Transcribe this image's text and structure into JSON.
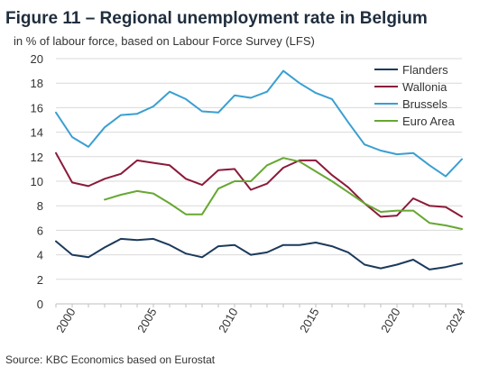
{
  "header": {
    "title": "Figure 11 – Regional unemployment rate in Belgium",
    "subtitle": "in % of labour force, based on Labour Force Survey (LFS)"
  },
  "footer": {
    "source": "Source: KBC Economics based on Eurostat"
  },
  "chart_data": {
    "type": "line",
    "title": "Figure 11 – Regional unemployment rate in Belgium",
    "subtitle": "in % of labour force, based on Labour Force Survey (LFS)",
    "xlabel": "",
    "ylabel": "",
    "xlim": [
      1999,
      2024
    ],
    "ylim": [
      0,
      20
    ],
    "yticks": [
      0,
      2,
      4,
      6,
      8,
      10,
      12,
      14,
      16,
      18,
      20
    ],
    "xticks": [
      2000,
      2005,
      2010,
      2015,
      2020,
      2024
    ],
    "grid": "horizontal",
    "legend_position": "top-right",
    "x": [
      1999,
      2000,
      2001,
      2002,
      2003,
      2004,
      2005,
      2006,
      2007,
      2008,
      2009,
      2010,
      2011,
      2012,
      2013,
      2014,
      2015,
      2016,
      2017,
      2018,
      2019,
      2020,
      2021,
      2022,
      2023,
      2024
    ],
    "series": [
      {
        "name": "Flanders",
        "color": "#1b3a5c",
        "values": [
          5.1,
          4.0,
          3.8,
          4.6,
          5.3,
          5.2,
          5.3,
          4.8,
          4.1,
          3.8,
          4.7,
          4.8,
          4.0,
          4.2,
          4.8,
          4.8,
          5.0,
          4.7,
          4.2,
          3.2,
          2.9,
          3.2,
          3.6,
          2.8,
          3.0,
          3.3
        ]
      },
      {
        "name": "Wallonia",
        "color": "#8b1a3a",
        "values": [
          12.3,
          9.9,
          9.6,
          10.2,
          10.6,
          11.7,
          11.5,
          11.3,
          10.2,
          9.7,
          10.9,
          11.0,
          9.3,
          9.8,
          11.1,
          11.7,
          11.7,
          10.5,
          9.5,
          8.2,
          7.1,
          7.2,
          8.6,
          8.0,
          7.9,
          7.1
        ]
      },
      {
        "name": "Brussels",
        "color": "#3a9fd1",
        "values": [
          15.6,
          13.6,
          12.8,
          14.4,
          15.4,
          15.5,
          16.1,
          17.3,
          16.7,
          15.7,
          15.6,
          17.0,
          16.8,
          17.3,
          19.0,
          18.0,
          17.2,
          16.7,
          14.8,
          13.0,
          12.5,
          12.2,
          12.3,
          11.3,
          10.4,
          11.8
        ]
      },
      {
        "name": "Euro Area",
        "color": "#66a832",
        "values": [
          null,
          null,
          null,
          8.5,
          8.9,
          9.2,
          9.0,
          8.2,
          7.3,
          7.3,
          9.4,
          10.0,
          10.0,
          11.3,
          11.9,
          11.6,
          10.8,
          10.0,
          9.1,
          8.2,
          7.5,
          7.6,
          7.6,
          6.6,
          6.4,
          6.1
        ]
      }
    ]
  }
}
